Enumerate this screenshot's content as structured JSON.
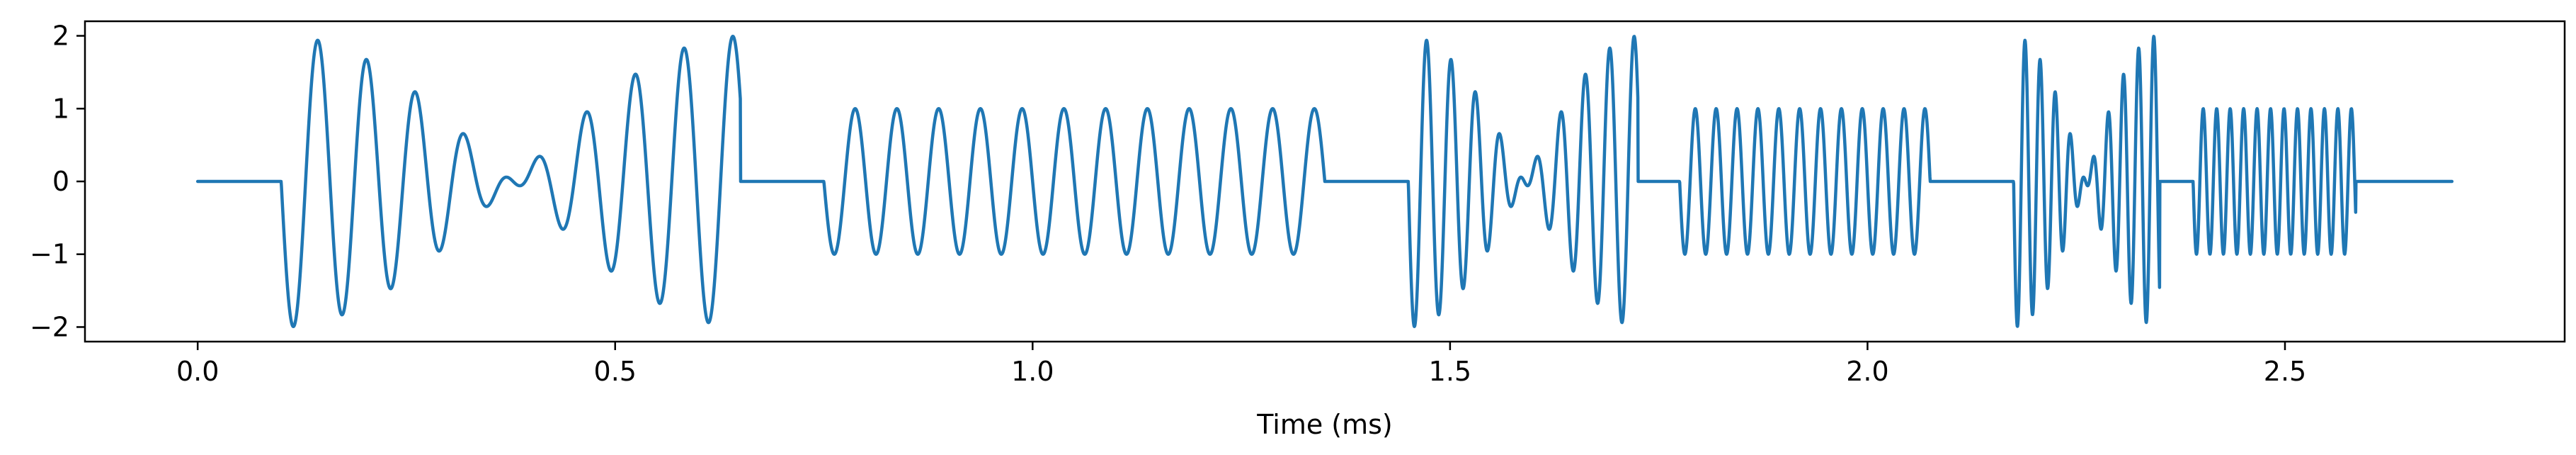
{
  "chart_data": {
    "type": "line",
    "title": "",
    "xlabel": "Time (ms)",
    "ylabel": "",
    "xlim": [
      -0.135,
      2.835
    ],
    "ylim": [
      -2.2,
      2.2
    ],
    "xticks": [
      0.0,
      0.5,
      1.0,
      1.5,
      2.0,
      2.5
    ],
    "xtick_labels": [
      "0.0",
      "0.5",
      "1.0",
      "1.5",
      "2.0",
      "2.5"
    ],
    "yticks": [
      -2,
      -1,
      0,
      1,
      2
    ],
    "ytick_labels": [
      "−2",
      "−1",
      "0",
      "1",
      "2"
    ],
    "grid": false,
    "series": [
      {
        "color": "#1f77b4",
        "segments": [
          {
            "start": 0.0,
            "end": 0.1,
            "kind": "zero"
          },
          {
            "start": 0.1,
            "end": 0.65,
            "kind": "dual_tone",
            "f1": 18,
            "f2": 16.2,
            "amp": 1.0
          },
          {
            "start": 0.65,
            "end": 0.75,
            "kind": "zero"
          },
          {
            "start": 0.75,
            "end": 1.35,
            "kind": "tone",
            "f1": 20,
            "amp": 1.0
          },
          {
            "start": 1.35,
            "end": 1.45,
            "kind": "zero"
          },
          {
            "start": 1.45,
            "end": 1.725,
            "kind": "dual_tone",
            "f1": 36,
            "f2": 32.4,
            "amp": 1.0
          },
          {
            "start": 1.725,
            "end": 1.775,
            "kind": "zero"
          },
          {
            "start": 1.775,
            "end": 2.075,
            "kind": "tone",
            "f1": 40,
            "amp": 1.0
          },
          {
            "start": 2.075,
            "end": 2.175,
            "kind": "zero"
          },
          {
            "start": 2.175,
            "end": 2.35,
            "kind": "dual_tone",
            "f1": 58,
            "f2": 52.2,
            "amp": 1.0
          },
          {
            "start": 2.35,
            "end": 2.39,
            "kind": "zero"
          },
          {
            "start": 2.39,
            "end": 2.585,
            "kind": "tone",
            "f1": 62,
            "amp": 1.0
          },
          {
            "start": 2.585,
            "end": 2.7,
            "kind": "zero"
          }
        ]
      }
    ]
  }
}
